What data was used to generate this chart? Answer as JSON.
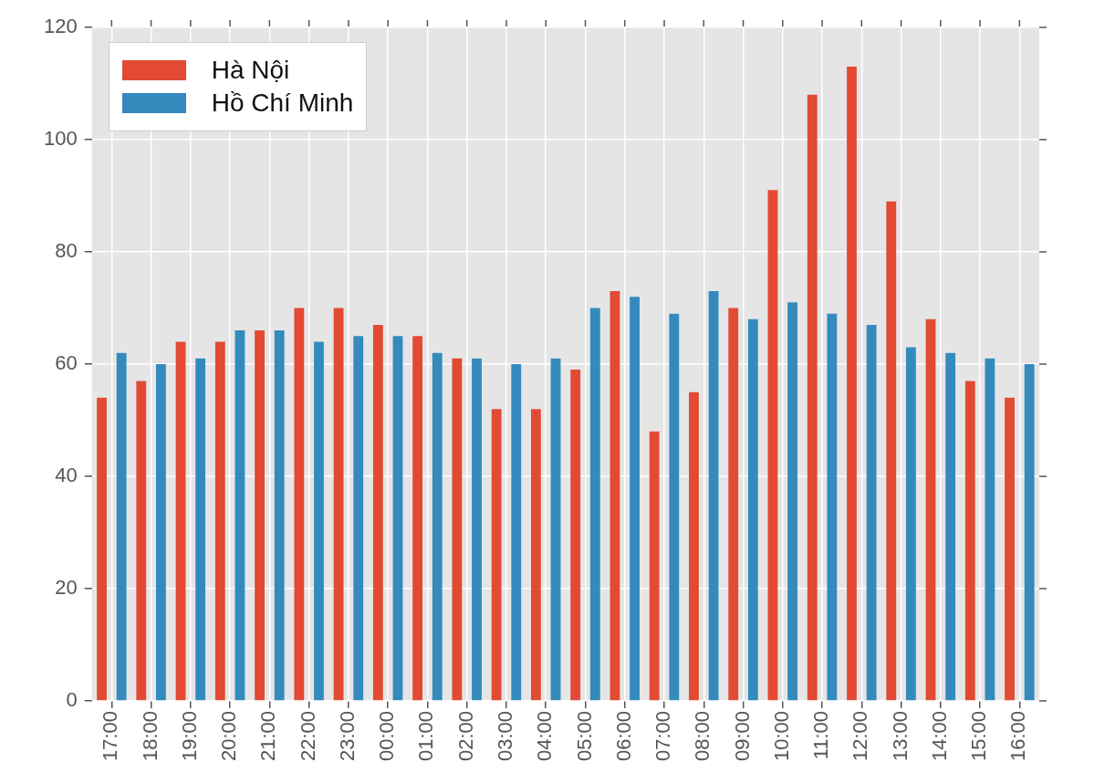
{
  "chart_data": {
    "type": "bar",
    "categories": [
      "17:00",
      "18:00",
      "19:00",
      "20:00",
      "21:00",
      "22:00",
      "23:00",
      "00:00",
      "01:00",
      "02:00",
      "03:00",
      "04:00",
      "05:00",
      "06:00",
      "07:00",
      "08:00",
      "09:00",
      "10:00",
      "11:00",
      "12:00",
      "13:00",
      "14:00",
      "15:00",
      "16:00"
    ],
    "series": [
      {
        "name": "Hà Nội",
        "color": "#e24a33",
        "values": [
          54,
          57,
          64,
          64,
          66,
          70,
          70,
          67,
          65,
          61,
          52,
          52,
          59,
          73,
          48,
          55,
          70,
          91,
          108,
          113,
          89,
          68,
          57,
          54
        ]
      },
      {
        "name": "Hồ Chí Minh",
        "color": "#348abd",
        "values": [
          62,
          60,
          61,
          66,
          66,
          64,
          65,
          65,
          62,
          61,
          60,
          61,
          70,
          72,
          69,
          73,
          68,
          71,
          69,
          67,
          63,
          62,
          61,
          60
        ]
      }
    ],
    "ylim": [
      0,
      120
    ],
    "yticks": [
      0,
      20,
      40,
      60,
      80,
      100,
      120
    ],
    "grid": true,
    "legend": "top left"
  }
}
